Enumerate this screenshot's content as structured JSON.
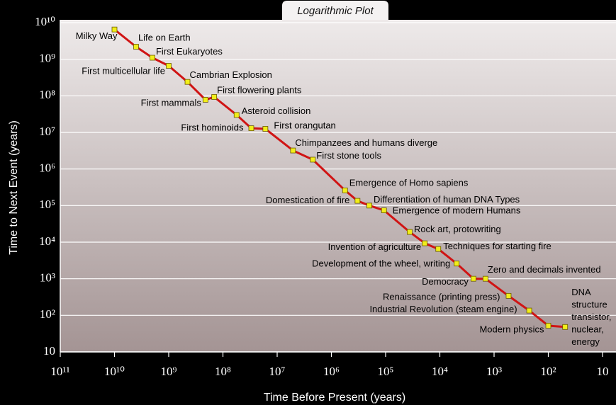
{
  "chart_data": {
    "type": "line",
    "title": "Logarithmic Plot",
    "x_label": "Time Before Present (years)",
    "y_label": "Time to Next Event (years)",
    "log_x": true,
    "log_y": true,
    "grid": true,
    "line_color": "#d01414",
    "marker_color": "#f2ee1a",
    "xlim": [
      100000000000,
      10
    ],
    "ylim": [
      10,
      10000000000
    ],
    "xticks": [
      {
        "value": 100000000000,
        "label": "10¹¹"
      },
      {
        "value": 10000000000,
        "label": "10¹⁰"
      },
      {
        "value": 1000000000,
        "label": "10⁹"
      },
      {
        "value": 100000000,
        "label": "10⁸"
      },
      {
        "value": 10000000,
        "label": "10⁷"
      },
      {
        "value": 1000000,
        "label": "10⁶"
      },
      {
        "value": 100000,
        "label": "10⁵"
      },
      {
        "value": 10000,
        "label": "10⁴"
      },
      {
        "value": 1000,
        "label": "10³"
      },
      {
        "value": 100,
        "label": "10²"
      },
      10
    ],
    "yticks": [
      10,
      {
        "value": 100,
        "label": "10²"
      },
      {
        "value": 1000,
        "label": "10³"
      },
      {
        "value": 10000,
        "label": "10⁴"
      },
      {
        "value": 100000,
        "label": "10⁵"
      },
      {
        "value": 1000000,
        "label": "10⁶"
      },
      {
        "value": 10000000,
        "label": "10⁷"
      },
      {
        "value": 100000000,
        "label": "10⁸"
      },
      {
        "value": 1000000000,
        "label": "10⁹"
      },
      {
        "value": 10000000000,
        "label": "10¹⁰"
      }
    ],
    "x": [
      10000000000,
      4000000000,
      2000000000,
      1000000000,
      450000000,
      210000000,
      145000000,
      56000000,
      30000000,
      16500000,
      5100000,
      2200000,
      560000,
      330000,
      200000,
      107000,
      36000,
      19000,
      10700,
      4900,
      2400,
      1440,
      540,
      225,
      100,
      49
    ],
    "values": [
      6500000000,
      2200000000,
      1100000000,
      660000000,
      240000000,
      78000000,
      93000000,
      30000000,
      13000000,
      12500000,
      3200000,
      1800000,
      260000,
      135000,
      100000,
      74000,
      19000,
      9300,
      6500,
      2600,
      1000,
      1000,
      340,
      135,
      52,
      48
    ],
    "point_labels": [
      "Milky Way",
      "Life on Earth",
      "First Eukaryotes",
      "First multicellular life",
      "Cambrian Explosion",
      "First mammals",
      "First flowering plants",
      "Asteroid collision",
      "First hominoids",
      "First orangutan",
      "Chimpanzees and humans diverge",
      "First stone tools",
      "Emergence of Homo sapiens",
      "Domestication of fire",
      "Differentiation of human DNA Types",
      "Emergence of modern Humans",
      "Rock art, protowriting",
      "Invention of agriculture",
      "Techniques for starting fire",
      "Development of the wheel, writing",
      "Democracy",
      "Zero and decimals invented",
      "Renaissance (printing press)",
      "Industrial Revolution (steam engine)",
      "Modern physics",
      [
        "DNA",
        "structure",
        "transistor,",
        "nuclear,",
        "energy"
      ]
    ]
  }
}
